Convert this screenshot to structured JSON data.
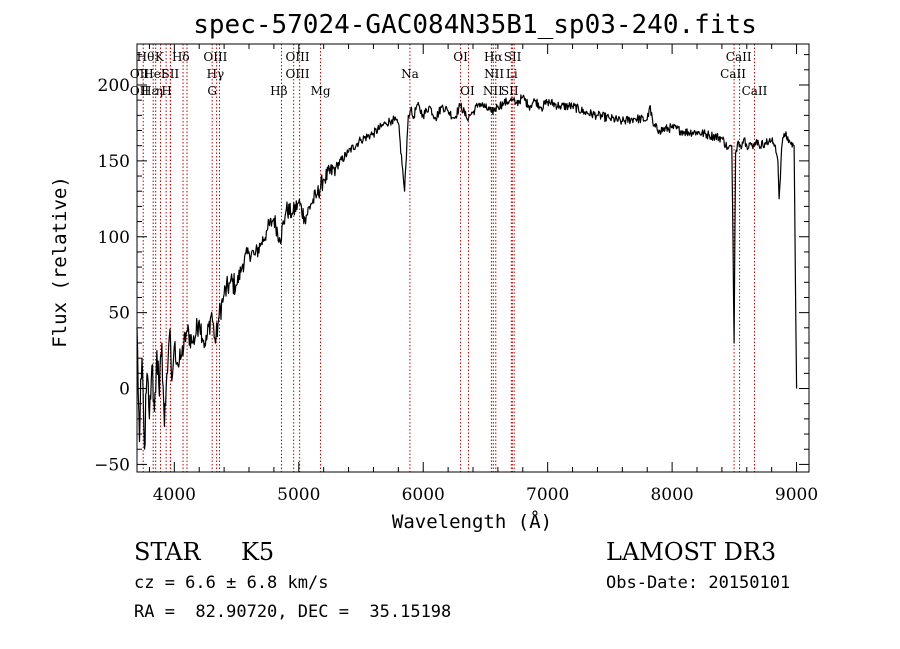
{
  "chart_data": {
    "type": "line",
    "title": "spec-57024-GAC084N35B1_sp03-240.fits",
    "xlabel": "Wavelength (Å)",
    "ylabel": "Flux (relative)",
    "xlim": [
      3700,
      9100
    ],
    "ylim": [
      -55,
      227
    ],
    "x_ticks": [
      4000,
      5000,
      6000,
      7000,
      8000,
      9000
    ],
    "x_tick_labels": [
      "4000",
      "5000",
      "6000",
      "7000",
      "8000",
      "9000"
    ],
    "y_ticks": [
      -50,
      0,
      50,
      100,
      150,
      200
    ],
    "y_tick_labels": [
      "−50",
      "0",
      "50",
      "100",
      "150",
      "200"
    ],
    "grid": false,
    "series": [
      {
        "name": "spectrum",
        "color": "#000000",
        "x": [
          3700,
          3720,
          3740,
          3760,
          3780,
          3800,
          3820,
          3840,
          3860,
          3880,
          3900,
          3920,
          3940,
          3960,
          3980,
          4000,
          4030,
          4060,
          4100,
          4150,
          4200,
          4250,
          4300,
          4330,
          4360,
          4400,
          4450,
          4500,
          4550,
          4600,
          4650,
          4700,
          4750,
          4800,
          4850,
          4900,
          4950,
          5000,
          5050,
          5100,
          5150,
          5200,
          5300,
          5400,
          5500,
          5600,
          5700,
          5750,
          5800,
          5850,
          5880,
          5900,
          5920,
          5950,
          6000,
          6050,
          6100,
          6150,
          6200,
          6250,
          6300,
          6350,
          6400,
          6450,
          6500,
          6550,
          6600,
          6650,
          6700,
          6750,
          6800,
          6850,
          6900,
          6950,
          7000,
          7100,
          7200,
          7300,
          7400,
          7500,
          7600,
          7700,
          7800,
          7820,
          7850,
          7900,
          8000,
          8100,
          8200,
          8300,
          8400,
          8450,
          8480,
          8498,
          8510,
          8530,
          8550,
          8580,
          8600,
          8630,
          8650,
          8680,
          8700,
          8750,
          8800,
          8830,
          8850,
          8860,
          8880,
          8900,
          8950,
          8980,
          9000
        ],
        "y": [
          40,
          -35,
          20,
          -40,
          10,
          -20,
          15,
          -15,
          25,
          -5,
          30,
          -25,
          10,
          35,
          5,
          28,
          15,
          22,
          38,
          30,
          45,
          28,
          50,
          30,
          48,
          62,
          70,
          68,
          82,
          90,
          88,
          96,
          105,
          112,
          98,
          118,
          115,
          123,
          112,
          122,
          128,
          138,
          146,
          156,
          164,
          168,
          175,
          177,
          175,
          130,
          180,
          184,
          178,
          187,
          180,
          186,
          178,
          186,
          183,
          178,
          187,
          178,
          182,
          188,
          185,
          182,
          186,
          188,
          190,
          188,
          192,
          186,
          190,
          185,
          189,
          186,
          186,
          182,
          180,
          178,
          176,
          178,
          177,
          186,
          173,
          170,
          172,
          169,
          169,
          167,
          165,
          158,
          160,
          30,
          155,
          163,
          160,
          165,
          160,
          162,
          158,
          164,
          160,
          162,
          163,
          160,
          150,
          125,
          158,
          168,
          162,
          160,
          0
        ]
      }
    ],
    "lines": [
      {
        "x": 3750,
        "label": "Hθ"
      },
      {
        "x": 3830,
        "label": "OII"
      },
      {
        "x": 3850,
        "label": "H"
      },
      {
        "x": 3889,
        "label": "HeI"
      },
      {
        "x": 3934,
        "label": "K"
      },
      {
        "x": 3968,
        "label": "H"
      },
      {
        "x": 3970,
        "label": "Hε"
      },
      {
        "x": 4070,
        "label": "SII"
      },
      {
        "x": 4102,
        "label": "Hδ"
      },
      {
        "x": 4304,
        "label": "G"
      },
      {
        "x": 4340,
        "label": "Hγ"
      },
      {
        "x": 4363,
        "label": "OIII"
      },
      {
        "x": 4861,
        "label": "Hβ"
      },
      {
        "x": 4959,
        "label": "OIII"
      },
      {
        "x": 5007,
        "label": "OIII"
      },
      {
        "x": 5175,
        "label": "Mg"
      },
      {
        "x": 5893,
        "label": "Na"
      },
      {
        "x": 6300,
        "label": "OI"
      },
      {
        "x": 6364,
        "label": "OI"
      },
      {
        "x": 6548,
        "label": "NII"
      },
      {
        "x": 6563,
        "label": "Hα"
      },
      {
        "x": 6583,
        "label": "NII"
      },
      {
        "x": 6708,
        "label": "Li"
      },
      {
        "x": 6716,
        "label": "SII"
      },
      {
        "x": 6731,
        "label": "SII"
      },
      {
        "x": 8498,
        "label": "CaII"
      },
      {
        "x": 8542,
        "label": "CaII"
      },
      {
        "x": 8662,
        "label": "CaII"
      }
    ],
    "line_label_rows": [
      {
        "row": 0,
        "items": [
          {
            "x": 3768,
            "text": "Hθ"
          },
          {
            "x": 3880,
            "text": "K"
          },
          {
            "x": 4052,
            "text": "Hδ"
          },
          {
            "x": 4330,
            "text": "OIII"
          },
          {
            "x": 4990,
            "text": "OIII"
          },
          {
            "x": 6300,
            "text": "OI"
          },
          {
            "x": 6563,
            "text": "Hα"
          },
          {
            "x": 6718,
            "text": "SII"
          },
          {
            "x": 8535,
            "text": "CaII"
          }
        ]
      },
      {
        "row": 1,
        "items": [
          {
            "x": 3720,
            "text": "OII"
          },
          {
            "x": 3840,
            "text": "HeI"
          },
          {
            "x": 3968,
            "text": "SII"
          },
          {
            "x": 4330,
            "text": "Hγ"
          },
          {
            "x": 4990,
            "text": "OIII"
          },
          {
            "x": 5893,
            "text": "Na"
          },
          {
            "x": 6570,
            "text": "NII"
          },
          {
            "x": 6712,
            "text": "Li"
          },
          {
            "x": 8490,
            "text": "CaII"
          }
        ]
      },
      {
        "row": 2,
        "items": [
          {
            "x": 3720,
            "text": "OII"
          },
          {
            "x": 3800,
            "text": "Hε"
          },
          {
            "x": 3880,
            "text": "η"
          },
          {
            "x": 3938,
            "text": "H"
          },
          {
            "x": 4304,
            "text": "G"
          },
          {
            "x": 4840,
            "text": "Hβ"
          },
          {
            "x": 5175,
            "text": "Mg"
          },
          {
            "x": 6355,
            "text": "OI"
          },
          {
            "x": 6560,
            "text": "NII"
          },
          {
            "x": 6695,
            "text": "SII"
          },
          {
            "x": 8662,
            "text": "CaII"
          }
        ]
      }
    ]
  },
  "info": {
    "class_label": "STAR",
    "subclass": "K5",
    "survey": "LAMOST DR3",
    "redshift_text": "cz = 6.6 ± 6.8 km/s",
    "obs_date_text": "Obs-Date: 20150101",
    "coords_text": "RA =  82.90720, DEC =  35.15198"
  }
}
